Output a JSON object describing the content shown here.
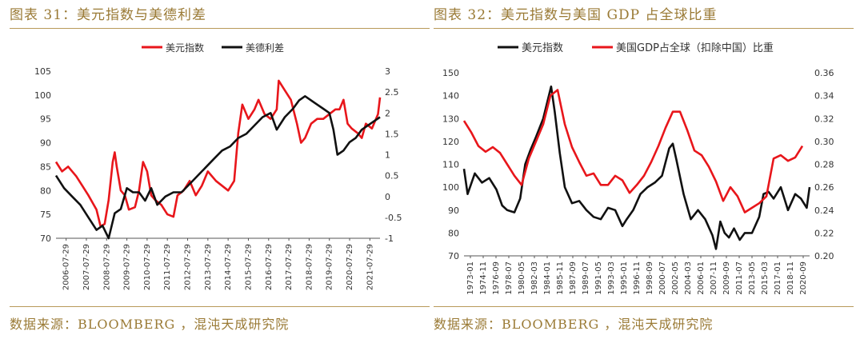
{
  "charts": [
    {
      "title": "图表 31：美元指数与美德利差",
      "source": "数据来源：BLOOMBERG ，混沌天成研究院"
    },
    {
      "title": "图表 32：美元指数与美国 GDP 占全球比重",
      "source": "数据来源：BLOOMBERG ，混沌天成研究院"
    }
  ],
  "chart_data": [
    {
      "type": "line",
      "legend_position": "top",
      "x_tick_labels": [
        "2006-07-29",
        "2007-07-29",
        "2008-07-29",
        "2009-07-29",
        "2010-07-29",
        "2011-07-29",
        "2012-07-29",
        "2013-07-29",
        "2014-07-29",
        "2015-07-29",
        "2016-07-29",
        "2017-07-29",
        "2018-07-29",
        "2019-07-29",
        "2020-07-29",
        "2021-07-29"
      ],
      "y_left": {
        "min": 70,
        "max": 105,
        "ticks": [
          70,
          75,
          80,
          85,
          90,
          95,
          100,
          105
        ]
      },
      "y_right": {
        "min": -1,
        "max": 3,
        "ticks": [
          "-1",
          "-0.5",
          "0",
          "0.5",
          "1",
          "1.5",
          "2",
          "2.5",
          "3"
        ]
      },
      "series": [
        {
          "name": "美元指数",
          "color": "#e8161b",
          "axis": "left",
          "x": [
            2006.0,
            2006.3,
            2006.6,
            2007.0,
            2007.3,
            2007.6,
            2008.0,
            2008.2,
            2008.4,
            2008.6,
            2008.8,
            2008.9,
            2009.0,
            2009.2,
            2009.4,
            2009.6,
            2009.9,
            2010.1,
            2010.3,
            2010.5,
            2010.7,
            2010.9,
            2011.2,
            2011.5,
            2011.8,
            2012.0,
            2012.3,
            2012.6,
            2012.9,
            2013.2,
            2013.5,
            2013.9,
            2014.2,
            2014.5,
            2014.8,
            2015.0,
            2015.2,
            2015.5,
            2015.8,
            2016.0,
            2016.3,
            2016.6,
            2016.9,
            2017.0,
            2017.3,
            2017.6,
            2017.9,
            2018.1,
            2018.3,
            2018.6,
            2018.9,
            2019.2,
            2019.5,
            2019.8,
            2020.0,
            2020.2,
            2020.4,
            2020.6,
            2020.9,
            2021.1,
            2021.3,
            2021.6,
            2021.9,
            2022.0
          ],
          "values": [
            86,
            84,
            85,
            83,
            81,
            79,
            76,
            72.5,
            73,
            78,
            86,
            88,
            85,
            80,
            79,
            76,
            76.5,
            80,
            86,
            84,
            79,
            78,
            77,
            75,
            74.5,
            79,
            80,
            82,
            79,
            81,
            84,
            82,
            81,
            80,
            82,
            92,
            98,
            95,
            97,
            99,
            96,
            95,
            97,
            103,
            101,
            99,
            94,
            90,
            91,
            94,
            95,
            95,
            96,
            97,
            97,
            99,
            94,
            93,
            92,
            91,
            94,
            93,
            96,
            99.5
          ]
        },
        {
          "name": "美德利差",
          "color": "#111111",
          "axis": "right",
          "x": [
            2006.0,
            2006.4,
            2006.8,
            2007.2,
            2007.6,
            2008.0,
            2008.3,
            2008.6,
            2008.9,
            2009.2,
            2009.5,
            2009.8,
            2010.1,
            2010.4,
            2010.7,
            2011.0,
            2011.4,
            2011.8,
            2012.2,
            2012.6,
            2013.0,
            2013.4,
            2013.8,
            2014.2,
            2014.6,
            2015.0,
            2015.4,
            2015.8,
            2016.2,
            2016.6,
            2016.9,
            2017.3,
            2017.7,
            2018.0,
            2018.3,
            2018.6,
            2018.9,
            2019.2,
            2019.5,
            2019.7,
            2019.9,
            2020.2,
            2020.5,
            2020.8,
            2021.1,
            2021.4,
            2021.7,
            2022.0
          ],
          "values": [
            0.5,
            0.2,
            0,
            -0.2,
            -0.5,
            -0.8,
            -0.7,
            -1,
            -0.4,
            -0.3,
            0.2,
            0.1,
            0.1,
            -0.1,
            0.2,
            -0.2,
            0,
            0.1,
            0.1,
            0.3,
            0.5,
            0.7,
            0.9,
            1.1,
            1.2,
            1.4,
            1.5,
            1.7,
            1.9,
            2.0,
            1.6,
            1.9,
            2.1,
            2.3,
            2.4,
            2.3,
            2.2,
            2.1,
            2.0,
            1.6,
            1.0,
            1.1,
            1.3,
            1.4,
            1.6,
            1.7,
            1.8,
            1.9
          ]
        }
      ]
    },
    {
      "type": "line",
      "legend_position": "top",
      "x_tick_labels": [
        "1973-01",
        "1974-11",
        "1976-09",
        "1978-07",
        "1980-05",
        "1982-03",
        "1984-01",
        "1985-11",
        "1987-09",
        "1989-07",
        "1991-05",
        "1993-03",
        "1995-01",
        "1996-11",
        "1998-09",
        "2000-07",
        "2002-05",
        "2004-03",
        "2006-01",
        "2007-11",
        "2009-09",
        "2011-07",
        "2013-05",
        "2015-03",
        "2017-01",
        "2018-11",
        "2020-09"
      ],
      "y_left": {
        "min": 70,
        "max": 150,
        "ticks": [
          70,
          80,
          90,
          100,
          110,
          120,
          130,
          140,
          150
        ]
      },
      "y_right": {
        "min": 0.2,
        "max": 0.36,
        "ticks": [
          "0.20",
          "0.22",
          "0.24",
          "0.26",
          "0.28",
          "0.30",
          "0.32",
          "0.34",
          "0.36"
        ]
      },
      "series": [
        {
          "name": "美元指数",
          "color": "#111111",
          "axis": "left",
          "x": [
            1973.0,
            1973.5,
            1974.5,
            1975.5,
            1976.5,
            1977.5,
            1978.3,
            1979.0,
            1980.0,
            1980.8,
            1981.5,
            1982.2,
            1983.0,
            1984.0,
            1985.1,
            1985.6,
            1986.3,
            1987.0,
            1988.0,
            1989.0,
            1990.0,
            1991.0,
            1992.0,
            1993.0,
            1994.0,
            1995.0,
            1995.6,
            1996.5,
            1997.5,
            1998.5,
            1999.5,
            2000.5,
            2001.5,
            2002.0,
            2002.5,
            2003.5,
            2004.5,
            2005.5,
            2006.5,
            2007.5,
            2008.0,
            2008.6,
            2009.2,
            2009.8,
            2010.5,
            2011.3,
            2012.0,
            2013.0,
            2014.0,
            2014.6,
            2015.3,
            2016.0,
            2017.0,
            2018.0,
            2019.0,
            2019.8,
            2020.6,
            2021.0
          ],
          "values": [
            108,
            97,
            106,
            102,
            104,
            99,
            92,
            90,
            89,
            95,
            110,
            116,
            122,
            130,
            144,
            133,
            115,
            100,
            93,
            94,
            90,
            87,
            86,
            91,
            90,
            83,
            86,
            90,
            97,
            100,
            102,
            105,
            117,
            119,
            112,
            97,
            86,
            90,
            86,
            79,
            73,
            85,
            80,
            78,
            82,
            77,
            80,
            80,
            87,
            97,
            98,
            95,
            100,
            90,
            97,
            95,
            91,
            100
          ]
        },
        {
          "name": "美国GDP占全球（扣除中国）比重",
          "color": "#e8161b",
          "axis": "right",
          "x": [
            1973,
            1974,
            1975,
            1976,
            1977,
            1978,
            1979,
            1980,
            1981,
            1982,
            1983,
            1984,
            1985,
            1986,
            1987,
            1988,
            1989,
            1990,
            1991,
            1992,
            1993,
            1994,
            1995,
            1996,
            1997,
            1998,
            1999,
            2000,
            2001,
            2002,
            2003,
            2004,
            2005,
            2006,
            2007,
            2008,
            2009,
            2010,
            2011,
            2012,
            2013,
            2014,
            2015,
            2016,
            2017,
            2018,
            2019,
            2020
          ],
          "values": [
            0.318,
            0.308,
            0.296,
            0.291,
            0.295,
            0.29,
            0.28,
            0.27,
            0.262,
            0.285,
            0.3,
            0.315,
            0.34,
            0.345,
            0.315,
            0.295,
            0.282,
            0.27,
            0.272,
            0.262,
            0.262,
            0.27,
            0.266,
            0.255,
            0.262,
            0.27,
            0.282,
            0.296,
            0.312,
            0.326,
            0.326,
            0.31,
            0.292,
            0.288,
            0.278,
            0.265,
            0.248,
            0.26,
            0.252,
            0.238,
            0.242,
            0.246,
            0.252,
            0.285,
            0.288,
            0.283,
            0.286,
            0.296
          ]
        }
      ]
    }
  ]
}
